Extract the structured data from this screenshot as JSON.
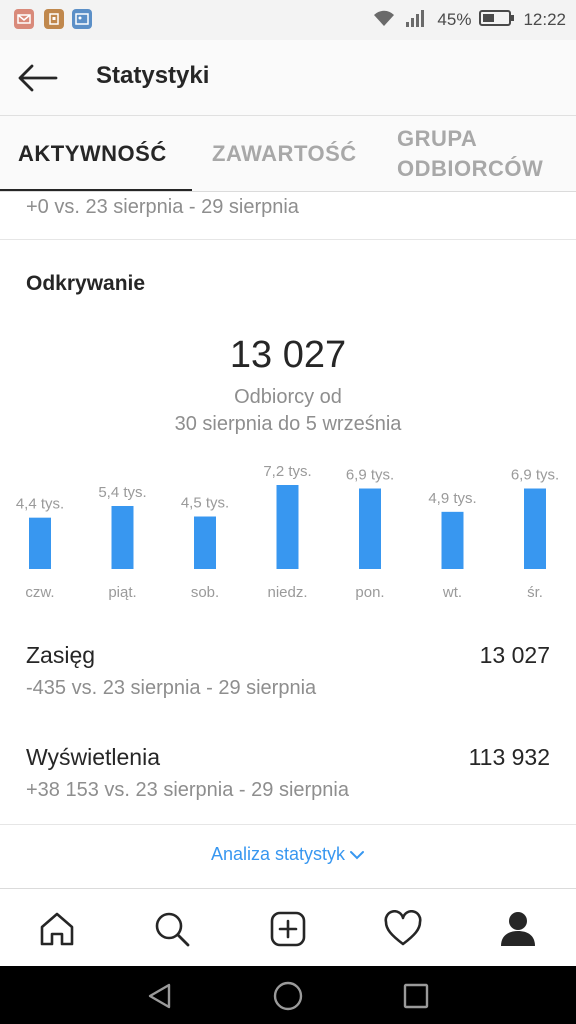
{
  "status_bar": {
    "battery": "45%",
    "time": "12:22"
  },
  "header": {
    "title": "Statystyki"
  },
  "tabs": [
    {
      "label": "AKTYWNOŚĆ"
    },
    {
      "label": "ZAWARTOŚĆ"
    },
    {
      "label_line1": "GRUPA",
      "label_line2": "ODBIORCÓW"
    }
  ],
  "previous_comparison": "+0 vs. 23 sierpnia - 29 sierpnia",
  "discovery": {
    "title": "Odkrywanie",
    "total": "13 027",
    "subtitle_line1": "Odbiorcy od",
    "subtitle_line2": "30 sierpnia do 5 września"
  },
  "chart_data": {
    "type": "bar",
    "categories": [
      "czw.",
      "piąt.",
      "sob.",
      "niedz.",
      "pon.",
      "wt.",
      "śr."
    ],
    "values": [
      4400,
      5400,
      4500,
      7200,
      6900,
      4900,
      6900
    ],
    "data_labels": [
      "4,4 tys.",
      "5,4 tys.",
      "4,5 tys.",
      "7,2 tys.",
      "6,9 tys.",
      "4,9 tys.",
      "6,9 tys."
    ],
    "bar_color": "#3897f0"
  },
  "metrics": [
    {
      "label": "Zasięg",
      "value": "13 027",
      "comparison": "-435 vs. 23 sierpnia - 29 sierpnia"
    },
    {
      "label": "Wyświetlenia",
      "value": "113 932",
      "comparison": "+38 153 vs. 23 sierpnia - 29 sierpnia"
    }
  ],
  "more_link": "Analiza statystyk",
  "bottom_nav": [
    "home-icon",
    "search-icon",
    "add-post-icon",
    "heart-icon",
    "profile-icon"
  ],
  "colors": {
    "accent": "#3897f0",
    "text": "#262626",
    "muted": "#8e8e8e"
  }
}
